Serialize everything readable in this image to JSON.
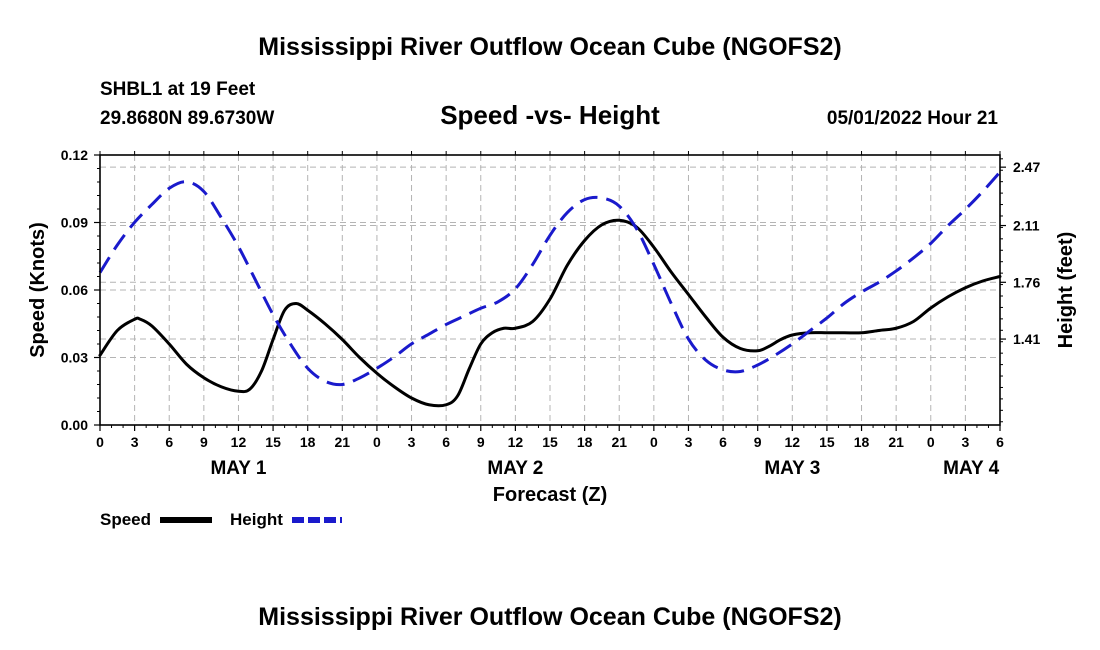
{
  "header": {
    "title": "Mississippi River Outflow Ocean Cube (NGOFS2)",
    "station": "SHBL1 at 19 Feet",
    "coords": "29.8680N  89.6730W",
    "subtitle": "Speed -vs- Height",
    "datetime": "05/01/2022 Hour 21"
  },
  "footer": {
    "title": "Mississippi River Outflow Ocean Cube (NGOFS2)"
  },
  "legend": {
    "speed_label": "Speed",
    "height_label": "Height"
  },
  "colors": {
    "speed": "#000000",
    "height": "#1a1acc",
    "grid": "#b4b4b4"
  },
  "chart_data": {
    "type": "line",
    "xlabel": "Forecast (Z)",
    "ylabel_left": "Speed (Knots)",
    "ylabel_right": "Height (feet)",
    "x_unit": "forecast hours from 2022-05-01 00Z",
    "xlim": [
      0,
      78
    ],
    "ylim_left": [
      0,
      0.12
    ],
    "ylim_right": [
      0.88,
      2.545
    ],
    "left_ticks": [
      "0.00",
      "0.03",
      "0.06",
      "0.09",
      "0.12"
    ],
    "left_tick_values": [
      0,
      0.03,
      0.06,
      0.09,
      0.12
    ],
    "right_ticks": [
      "1.41",
      "1.76",
      "2.11",
      "2.47"
    ],
    "right_tick_values": [
      1.41,
      1.76,
      2.11,
      2.47
    ],
    "x_tick_values": [
      0,
      3,
      6,
      9,
      12,
      15,
      18,
      21,
      24,
      27,
      30,
      33,
      36,
      39,
      42,
      45,
      48,
      51,
      54,
      57,
      60,
      63,
      66,
      69,
      72,
      75,
      78
    ],
    "x_tick_labels": [
      "0",
      "3",
      "6",
      "9",
      "12",
      "15",
      "18",
      "21",
      "0",
      "3",
      "6",
      "9",
      "12",
      "15",
      "18",
      "21",
      "0",
      "3",
      "6",
      "9",
      "12",
      "15",
      "18",
      "21",
      "0",
      "3",
      "6"
    ],
    "day_labels": [
      {
        "label": "MAY 1",
        "hour": 12
      },
      {
        "label": "MAY 2",
        "hour": 36
      },
      {
        "label": "MAY 3",
        "hour": 60
      },
      {
        "label": "MAY 4",
        "hour": 75.5
      }
    ],
    "series": [
      {
        "name": "Speed",
        "axis": "left",
        "style": "solid",
        "x": [
          0,
          1.5,
          3,
          3.5,
          4.5,
          6,
          7.5,
          9,
          10.5,
          12,
          13,
          14,
          15,
          16,
          17,
          18,
          19.5,
          21,
          22.5,
          24,
          25.5,
          27,
          28.5,
          30,
          31,
          32,
          33,
          34,
          35,
          36,
          37.5,
          39,
          40.5,
          42,
          43.5,
          45,
          46.5,
          48,
          49.5,
          51,
          52.5,
          54,
          55.5,
          57,
          58,
          59,
          60,
          61.5,
          63,
          64.5,
          66,
          67.5,
          69,
          70.5,
          72,
          73.5,
          75,
          76.5,
          78
        ],
        "values": [
          0.031,
          0.042,
          0.047,
          0.047,
          0.044,
          0.036,
          0.027,
          0.021,
          0.017,
          0.015,
          0.016,
          0.024,
          0.038,
          0.051,
          0.054,
          0.051,
          0.045,
          0.038,
          0.03,
          0.023,
          0.017,
          0.012,
          0.009,
          0.009,
          0.013,
          0.025,
          0.036,
          0.041,
          0.043,
          0.043,
          0.046,
          0.056,
          0.071,
          0.082,
          0.089,
          0.091,
          0.088,
          0.079,
          0.068,
          0.058,
          0.048,
          0.039,
          0.034,
          0.033,
          0.035,
          0.038,
          0.04,
          0.041,
          0.041,
          0.041,
          0.041,
          0.042,
          0.043,
          0.046,
          0.052,
          0.057,
          0.061,
          0.064,
          0.066
        ]
      },
      {
        "name": "Height",
        "axis": "right",
        "style": "dashed",
        "x": [
          0,
          1.5,
          3,
          4.5,
          6,
          7.5,
          9,
          10.5,
          12,
          13.5,
          15,
          16.5,
          18,
          19.5,
          21,
          22.5,
          24,
          25.5,
          27,
          28.5,
          30,
          31.5,
          33,
          34.5,
          36,
          37.5,
          39,
          40.5,
          42,
          43.5,
          45,
          46.5,
          48,
          49.5,
          51,
          52.5,
          54,
          55.5,
          57,
          58.5,
          60,
          61.5,
          63,
          64.5,
          66,
          67.5,
          69,
          70.5,
          72,
          73.5,
          75,
          76.5,
          78
        ],
        "values": [
          1.82,
          1.99,
          2.13,
          2.24,
          2.34,
          2.38,
          2.32,
          2.16,
          1.98,
          1.77,
          1.56,
          1.38,
          1.23,
          1.15,
          1.13,
          1.17,
          1.23,
          1.3,
          1.38,
          1.44,
          1.5,
          1.55,
          1.6,
          1.64,
          1.72,
          1.87,
          2.05,
          2.19,
          2.27,
          2.28,
          2.23,
          2.09,
          1.87,
          1.63,
          1.41,
          1.28,
          1.22,
          1.21,
          1.25,
          1.31,
          1.38,
          1.46,
          1.54,
          1.63,
          1.7,
          1.76,
          1.83,
          1.91,
          2.0,
          2.11,
          2.21,
          2.32,
          2.44
        ]
      }
    ]
  }
}
